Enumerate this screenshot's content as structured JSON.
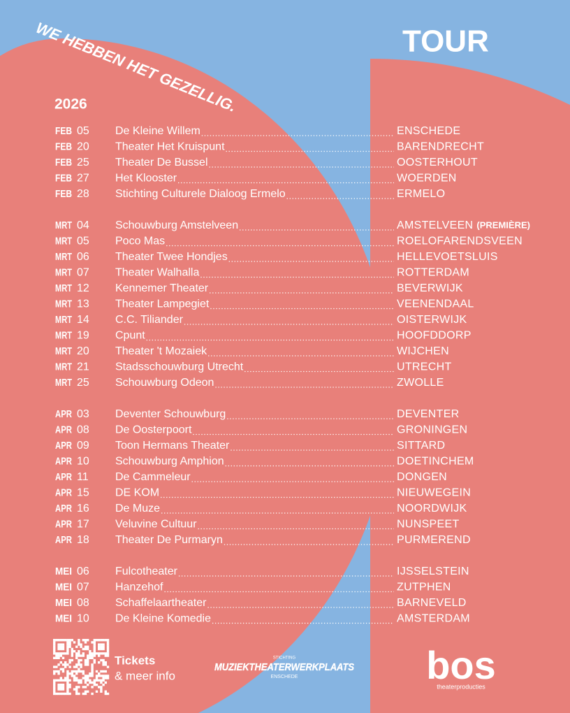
{
  "header": {
    "slogan": "WE HEBBEN HET GEZELLIG.",
    "title": "TOUR",
    "year": "2026"
  },
  "tour": {
    "groups": [
      {
        "rows": [
          {
            "month": "FEB",
            "day": "05",
            "venue": "De Kleine Willem",
            "city": "ENSCHEDE"
          },
          {
            "month": "FEB",
            "day": "20",
            "venue": "Theater Het Kruispunt",
            "city": "BARENDRECHT"
          },
          {
            "month": "FEB",
            "day": "25",
            "venue": "Theater De Bussel",
            "city": "OOSTERHOUT"
          },
          {
            "month": "FEB",
            "day": "27",
            "venue": "Het Klooster",
            "city": "WOERDEN"
          },
          {
            "month": "FEB",
            "day": "28",
            "venue": "Stichting Culturele Dialoog Ermelo",
            "city": "ERMELO"
          }
        ]
      },
      {
        "rows": [
          {
            "month": "MRT",
            "day": "04",
            "venue": "Schouwburg Amstelveen",
            "city": "AMSTELVEEN",
            "note": "(PREMIÈRE)"
          },
          {
            "month": "MRT",
            "day": "05",
            "venue": "Poco Mas",
            "city": "ROELOFARENDSVEEN"
          },
          {
            "month": "MRT",
            "day": "06",
            "venue": "Theater Twee Hondjes",
            "city": "HELLEVOETSLUIS"
          },
          {
            "month": "MRT",
            "day": "07",
            "venue": "Theater Walhalla",
            "city": "ROTTERDAM"
          },
          {
            "month": "MRT",
            "day": "12",
            "venue": "Kennemer Theater",
            "city": "BEVERWIJK"
          },
          {
            "month": "MRT",
            "day": "13",
            "venue": "Theater Lampegiet",
            "city": "VEENENDAAL"
          },
          {
            "month": "MRT",
            "day": "14",
            "venue": "C.C. Tiliander",
            "city": "OISTERWIJK"
          },
          {
            "month": "MRT",
            "day": "19",
            "venue": "Cpunt",
            "city": "HOOFDDORP"
          },
          {
            "month": "MRT",
            "day": "20",
            "venue": "Theater 't Mozaiek",
            "city": "WIJCHEN"
          },
          {
            "month": "MRT",
            "day": "21",
            "venue": "Stadsschouwburg Utrecht",
            "city": "UTRECHT"
          },
          {
            "month": "MRT",
            "day": "25",
            "venue": "Schouwburg Odeon",
            "city": "ZWOLLE"
          }
        ]
      },
      {
        "rows": [
          {
            "month": "APR",
            "day": "03",
            "venue": "Deventer Schouwburg",
            "city": "DEVENTER"
          },
          {
            "month": "APR",
            "day": "08",
            "venue": "De Oosterpoort",
            "city": "GRONINGEN"
          },
          {
            "month": "APR",
            "day": "09",
            "venue": "Toon Hermans Theater",
            "city": "SITTARD"
          },
          {
            "month": "APR",
            "day": "10",
            "venue": "Schouwburg Amphion",
            "city": "DOETINCHEM"
          },
          {
            "month": "APR",
            "day": "11",
            "venue": "De Cammeleur",
            "city": "DONGEN"
          },
          {
            "month": "APR",
            "day": "15",
            "venue": "DE KOM",
            "city": "NIEUWEGEIN"
          },
          {
            "month": "APR",
            "day": "16",
            "venue": "De Muze",
            "city": "NOORDWIJK"
          },
          {
            "month": "APR",
            "day": "17",
            "venue": "Veluvine Cultuur",
            "city": "NUNSPEET"
          },
          {
            "month": "APR",
            "day": "18",
            "venue": "Theater De Purmaryn",
            "city": "PURMEREND"
          }
        ]
      },
      {
        "rows": [
          {
            "month": "MEI",
            "day": "06",
            "venue": "Fulcotheater",
            "city": "IJSSELSTEIN"
          },
          {
            "month": "MEI",
            "day": "07",
            "venue": "Hanzehof",
            "city": "ZUTPHEN"
          },
          {
            "month": "MEI",
            "day": "08",
            "venue": "Schaffelaartheater",
            "city": "BARNEVELD"
          },
          {
            "month": "MEI",
            "day": "10",
            "venue": "De Kleine Komedie",
            "city": "AMSTERDAM"
          }
        ]
      }
    ]
  },
  "footer": {
    "tickets": "Tickets",
    "info": "& meer info",
    "logo1": {
      "top": "STICHTING",
      "name": "MUZIEKTHEATERWERKPLAATS",
      "bottom": "ENSCHEDE"
    },
    "logo2": {
      "name": "bos",
      "sub": "theaterproducties"
    }
  }
}
